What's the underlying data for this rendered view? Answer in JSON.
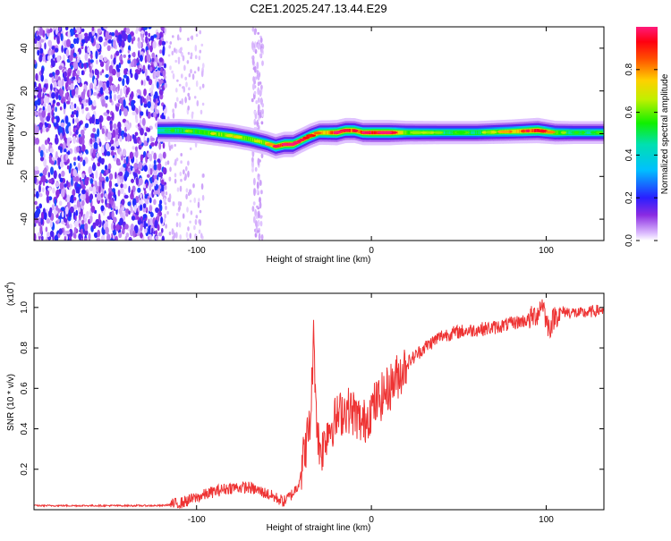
{
  "page_title": "C2E1.2025.247.13.44.E29",
  "chart_data": [
    {
      "type": "heatmap",
      "title": "C2E1.2025.247.13.44.E29",
      "xlabel": "Height of straight line (km)",
      "ylabel": "Frequency (Hz)",
      "xlim": [
        -193,
        133
      ],
      "ylim": [
        -50,
        50
      ],
      "x_ticks": [
        -100,
        0,
        100
      ],
      "x_tick_labels": [
        "-100",
        "0",
        "100"
      ],
      "y_ticks": [
        -40,
        -20,
        0,
        20,
        40
      ],
      "y_tick_labels": [
        "-40",
        "-20",
        "0",
        "20",
        "40"
      ],
      "colorbar": {
        "label": "Normalized spectral amplitude",
        "range": [
          0,
          1
        ],
        "ticks": [
          0.0,
          0.2,
          0.4,
          0.6,
          0.8
        ],
        "tick_labels": [
          "0.0",
          "0.2",
          "0.4",
          "0.6",
          "0.8"
        ]
      },
      "noise_region_x": [
        -193,
        -120
      ],
      "signal_start_x": -122,
      "signal_track": {
        "x": [
          -122,
          -110,
          -100,
          -90,
          -80,
          -70,
          -60,
          -55,
          -50,
          -45,
          -40,
          -35,
          -30,
          -25,
          -20,
          -15,
          -10,
          -5,
          0,
          10,
          20,
          40,
          60,
          80,
          95,
          105,
          115,
          133
        ],
        "freq_hz": [
          1.5,
          1.5,
          1.0,
          0.0,
          -1.0,
          -2.5,
          -4.5,
          -6.0,
          -5.0,
          -5.0,
          -3.0,
          -1.0,
          0.5,
          0.5,
          0.5,
          1.5,
          1.5,
          0.5,
          0.5,
          0.5,
          0.5,
          0.5,
          0.5,
          1.0,
          1.5,
          0.5,
          0.5,
          0.5
        ],
        "amplitude": [
          0.4,
          0.5,
          0.55,
          0.6,
          0.65,
          0.6,
          0.65,
          0.85,
          0.95,
          0.95,
          0.85,
          0.85,
          0.75,
          0.8,
          0.95,
          0.9,
          0.85,
          0.9,
          0.95,
          0.95,
          0.6,
          0.5,
          0.5,
          0.7,
          0.95,
          0.6,
          0.45,
          0.45
        ]
      }
    },
    {
      "type": "line",
      "xlabel": "Height of straight line (km)",
      "ylabel": "SNR (10 * v/v)",
      "y_multiplier_label": "(x10",
      "y_multiplier_exp": "4",
      "y_multiplier_close": ")",
      "xlim": [
        -193,
        133
      ],
      "ylim": [
        0,
        1.07
      ],
      "x_ticks": [
        -100,
        0,
        100
      ],
      "x_tick_labels": [
        "-100",
        "0",
        "100"
      ],
      "y_ticks": [
        0.2,
        0.4,
        0.6,
        0.8,
        1.0
      ],
      "y_tick_labels": [
        "0.2",
        "0.4",
        "0.6",
        "0.8",
        "1.0"
      ],
      "series": [
        {
          "name": "SNR",
          "color": "#ee3333",
          "x": [
            -193,
            -180,
            -160,
            -140,
            -120,
            -110,
            -100,
            -90,
            -80,
            -70,
            -60,
            -50,
            -45,
            -42,
            -40,
            -38,
            -35,
            -33,
            -31,
            -30,
            -28,
            -25,
            -20,
            -15,
            -10,
            -5,
            0,
            5,
            10,
            15,
            20,
            30,
            40,
            50,
            60,
            70,
            80,
            90,
            95,
            98,
            100,
            102,
            105,
            110,
            120,
            133
          ],
          "y": [
            0.02,
            0.02,
            0.02,
            0.02,
            0.02,
            0.03,
            0.06,
            0.09,
            0.11,
            0.11,
            0.08,
            0.04,
            0.08,
            0.12,
            0.2,
            0.3,
            0.42,
            0.85,
            0.4,
            0.32,
            0.3,
            0.4,
            0.45,
            0.5,
            0.48,
            0.42,
            0.5,
            0.55,
            0.6,
            0.66,
            0.72,
            0.8,
            0.86,
            0.88,
            0.89,
            0.9,
            0.92,
            0.94,
            0.97,
            1.03,
            0.93,
            0.9,
            0.96,
            0.98,
            0.97,
            0.99
          ]
        }
      ]
    }
  ]
}
